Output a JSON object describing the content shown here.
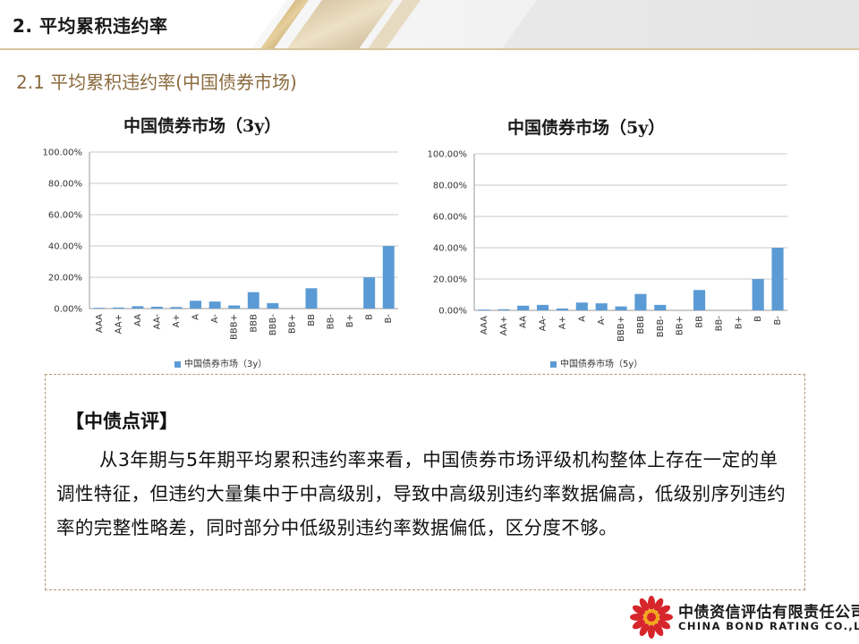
{
  "header": {
    "title": "2. 平均累积违约率"
  },
  "subtitle": "2.1 平均累积违约率(中国债券市场)",
  "colors": {
    "bar": "#5b9bd5",
    "gold": "#c9a96b",
    "accent_text": "#8a6a3d"
  },
  "chart_data": [
    {
      "type": "bar",
      "title": "中国债券市场（3y）",
      "categories": [
        "AAA",
        "AA+",
        "AA",
        "AA-",
        "A+",
        "A",
        "A-",
        "BBB+",
        "BBB",
        "BBB-",
        "BB+",
        "BB",
        "BB-",
        "B+",
        "B",
        "B-"
      ],
      "series": [
        {
          "name": "中国债券市场（3y）",
          "values": [
            0.5,
            0.7,
            1.5,
            1.2,
            1.0,
            5.0,
            4.5,
            2.0,
            10.5,
            3.5,
            0,
            13.0,
            0,
            0,
            20.0,
            40.0
          ]
        }
      ],
      "ylim": [
        0,
        100
      ],
      "yticks": [
        "0.00%",
        "20.00%",
        "40.00%",
        "60.00%",
        "80.00%",
        "100.00%"
      ],
      "grid": true,
      "legend": "bottom"
    },
    {
      "type": "bar",
      "title": "中国债券市场（5y）",
      "categories": [
        "AAA",
        "AA+",
        "AA",
        "AA-",
        "A+",
        "A",
        "A-",
        "BBB+",
        "BBB",
        "BBB-",
        "BB+",
        "BB",
        "BB-",
        "B+",
        "B",
        "B-"
      ],
      "series": [
        {
          "name": "中国债券市场（5y）",
          "values": [
            0.5,
            0.7,
            3.0,
            3.5,
            1.2,
            5.0,
            4.5,
            2.5,
            10.5,
            3.5,
            0,
            13.0,
            0,
            0,
            20.0,
            40.0
          ]
        }
      ],
      "ylim": [
        0,
        100
      ],
      "yticks": [
        "0.00%",
        "20.00%",
        "40.00%",
        "60.00%",
        "80.00%",
        "100.00%"
      ],
      "grid": true,
      "legend": "bottom"
    }
  ],
  "comment": {
    "heading": "【中债点评】",
    "body": "从3年期与5年期平均累积违约率来看，中国债券市场评级机构整体上存在一定的单调性特征，但违约大量集中于中高级别，导致中高级别违约率数据偏高，低级别序列违约率的完整性略差，同时部分中低级别违约率数据偏低，区分度不够。"
  },
  "logo": {
    "cn": "中债资信评估有限责任公司",
    "en": "CHINA BOND RATING CO.,LTD"
  }
}
